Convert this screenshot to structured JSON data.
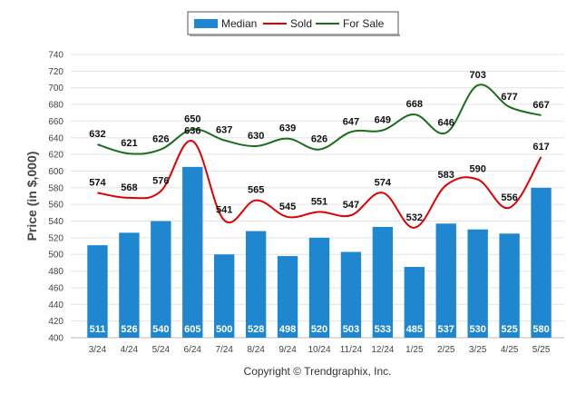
{
  "chart_data": {
    "type": "bar",
    "categories": [
      "3/24",
      "4/24",
      "5/24",
      "6/24",
      "7/24",
      "8/24",
      "9/24",
      "10/24",
      "11/24",
      "12/24",
      "1/25",
      "2/25",
      "3/25",
      "4/25",
      "5/25"
    ],
    "series": [
      {
        "name": "Median",
        "type": "bar",
        "color": "#1f86d0",
        "values": [
          511,
          526,
          540,
          605,
          500,
          528,
          498,
          520,
          503,
          533,
          485,
          537,
          530,
          525,
          580
        ]
      },
      {
        "name": "Sold",
        "type": "line",
        "color": "#e00000",
        "values": [
          574,
          568,
          576,
          636,
          541,
          565,
          545,
          551,
          547,
          574,
          532,
          583,
          590,
          556,
          617
        ]
      },
      {
        "name": "For Sale",
        "type": "line",
        "color": "#1a6e1a",
        "values": [
          632,
          621,
          626,
          650,
          637,
          630,
          639,
          626,
          647,
          649,
          668,
          646,
          703,
          677,
          667
        ]
      }
    ],
    "ylabel": "Price (in $,000)",
    "xlabel": "",
    "title": "",
    "ylim": [
      400,
      740
    ],
    "yticks": [
      400,
      420,
      440,
      460,
      480,
      500,
      520,
      540,
      560,
      580,
      600,
      620,
      640,
      660,
      680,
      700,
      720,
      740
    ],
    "grid": true,
    "legend": "top-center"
  },
  "copyright": "Copyright © Trendgraphix, Inc."
}
